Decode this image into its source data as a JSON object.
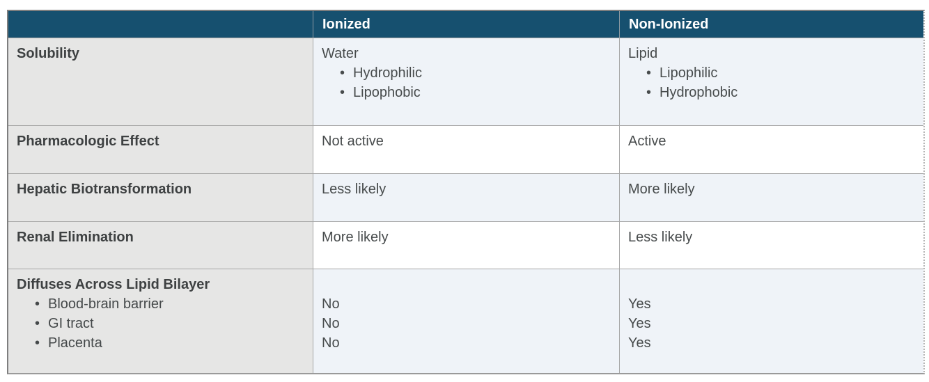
{
  "colors": {
    "header_bg": "#16506F",
    "header_text": "#FFFFFF",
    "label_column_bg": "#E6E6E5",
    "alt_row_bg": "#EFF3F8",
    "plain_row_bg": "#FFFFFF",
    "label_text": "#3E4142",
    "value_text": "#474B4C",
    "grid_line": "#A6A6A6"
  },
  "table": {
    "header": {
      "blank": "",
      "ionized": "Ionized",
      "nonionized": "Non-Ionized"
    },
    "rows": [
      {
        "label": {
          "title": "Solubility"
        },
        "ionized": {
          "title": "Water",
          "bullets": [
            "Hydrophilic",
            "Lipophobic"
          ]
        },
        "nonionized": {
          "title": "Lipid",
          "bullets": [
            "Lipophilic",
            "Hydrophobic"
          ]
        }
      },
      {
        "label": {
          "title": "Pharmacologic Effect"
        },
        "ionized": {
          "title": "Not active"
        },
        "nonionized": {
          "title": "Active"
        }
      },
      {
        "label": {
          "title": "Hepatic Biotransformation"
        },
        "ionized": {
          "title": "Less likely"
        },
        "nonionized": {
          "title": "More likely"
        }
      },
      {
        "label": {
          "title": "Renal Elimination"
        },
        "ionized": {
          "title": "More likely"
        },
        "nonionized": {
          "title": "Less likely"
        }
      },
      {
        "label": {
          "title": "Diffuses Across Lipid Bilayer",
          "bullets": [
            "Blood-brain barrier",
            "GI tract",
            "Placenta"
          ]
        },
        "ionized": {
          "values": [
            "No",
            "No",
            "No"
          ]
        },
        "nonionized": {
          "values": [
            "Yes",
            "Yes",
            "Yes"
          ]
        }
      }
    ]
  }
}
